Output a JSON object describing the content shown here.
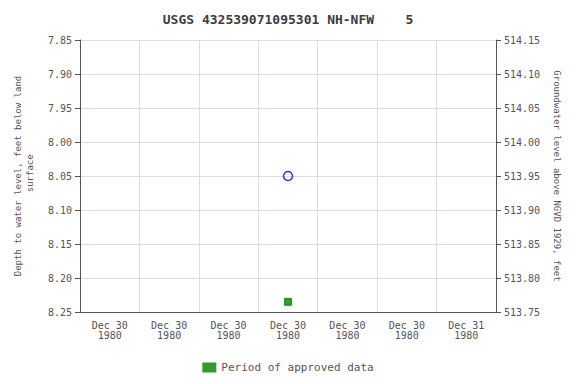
{
  "chart_data": {
    "type": "scatter",
    "title": "USGS 432539071095301 NH-NFW    5",
    "categories": [
      "Dec 30\n1980",
      "Dec 30\n1980",
      "Dec 30\n1980",
      "Dec 30\n1980",
      "Dec 30\n1980",
      "Dec 30\n1980",
      "Dec 31\n1980"
    ],
    "series": [
      {
        "color": "#0000cc",
        "marker": "open_circle",
        "values": [
          null,
          null,
          null,
          8.05,
          null,
          null,
          null
        ]
      },
      {
        "name": "Period of approved data",
        "color": "#008000",
        "marker": "square",
        "values": [
          null,
          null,
          null,
          8.235,
          null,
          null,
          null
        ]
      }
    ],
    "y_label": "Depth to water level, feet below land\n surface",
    "y2_label": "Groundwater level above NGVD 1929, feet",
    "ylim": [
      8.25,
      7.85
    ],
    "yticks": [
      7.85,
      {
        "value": 7.9,
        "label": "7.90"
      },
      7.95,
      {
        "value": 8,
        "label": "8.00"
      },
      8.05,
      {
        "value": 8.1,
        "label": "8.10"
      },
      8.15,
      {
        "value": 8.2,
        "label": "8.20"
      },
      8.25
    ],
    "y2lim": [
      513.75,
      514.15
    ],
    "y2ticks": [
      514.15,
      {
        "value": 514.1,
        "label": "514.10"
      },
      514.05,
      {
        "value": 514,
        "label": "514.00"
      },
      513.95,
      {
        "value": 513.9,
        "label": "513.90"
      },
      513.85,
      {
        "value": 513.8,
        "label": "513.80"
      },
      513.75
    ],
    "grid": true,
    "legend": "bottom"
  }
}
